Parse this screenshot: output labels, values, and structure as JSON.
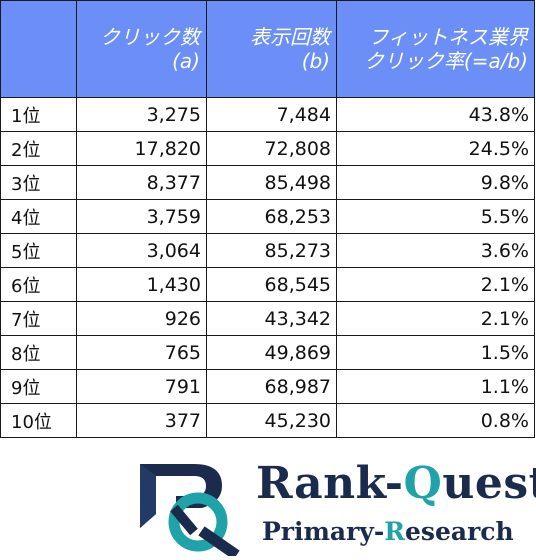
{
  "table": {
    "headers": {
      "rank": "",
      "clicks_line1": "クリック数",
      "clicks_line2": "(a)",
      "impressions_line1": "表示回数",
      "impressions_line2": "(b)",
      "ctr_line1": "フィットネス業界",
      "ctr_line2": "クリック率(=a/b)"
    },
    "rows": [
      {
        "rank": "1位",
        "clicks": "3,275",
        "impressions": "7,484",
        "ctr": "43.8%"
      },
      {
        "rank": "2位",
        "clicks": "17,820",
        "impressions": "72,808",
        "ctr": "24.5%"
      },
      {
        "rank": "3位",
        "clicks": "8,377",
        "impressions": "85,498",
        "ctr": "9.8%"
      },
      {
        "rank": "4位",
        "clicks": "3,759",
        "impressions": "68,253",
        "ctr": "5.5%"
      },
      {
        "rank": "5位",
        "clicks": "3,064",
        "impressions": "85,273",
        "ctr": "3.6%"
      },
      {
        "rank": "6位",
        "clicks": "1,430",
        "impressions": "68,545",
        "ctr": "2.1%"
      },
      {
        "rank": "7位",
        "clicks": "926",
        "impressions": "43,342",
        "ctr": "2.1%"
      },
      {
        "rank": "8位",
        "clicks": "765",
        "impressions": "49,869",
        "ctr": "1.5%"
      },
      {
        "rank": "9位",
        "clicks": "791",
        "impressions": "68,987",
        "ctr": "1.1%"
      },
      {
        "rank": "10位",
        "clicks": "377",
        "impressions": "45,230",
        "ctr": "0.8%"
      }
    ]
  },
  "logo": {
    "name_part1": "Rank-",
    "name_part2": "Q",
    "name_part3": "uest",
    "sub_part1": "Primary-",
    "sub_part2": "R",
    "sub_part3": "esearch",
    "colors": {
      "navy": "#1b2b4d",
      "teal": "#1fa3a8"
    }
  },
  "colors": {
    "header_bg": "#6b8ff6",
    "header_text": "#ffffff",
    "border": "#1a1a1a"
  }
}
